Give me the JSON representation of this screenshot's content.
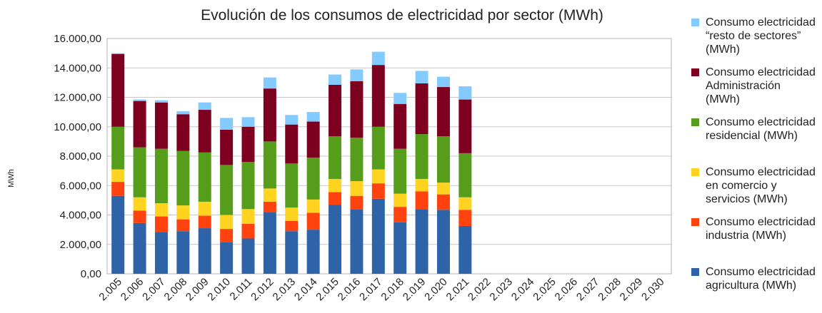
{
  "chart_data": {
    "type": "stacked_bar",
    "title": "Evolución de los consumos de electricidad por sector (MWh)",
    "y_label": "MWh",
    "categories": [
      "2.005",
      "2.006",
      "2.007",
      "2.008",
      "2.009",
      "2.010",
      "2.011",
      "2.012",
      "2.013",
      "2.014",
      "2.015",
      "2.016",
      "2.017",
      "2.018",
      "2.019",
      "2.020",
      "2.021",
      "2.022",
      "2.023",
      "2.024",
      "2.025",
      "2.026",
      "2.027",
      "2.028",
      "2.029",
      "2.030"
    ],
    "series": [
      {
        "name": "Consumo electricidad agricultura (MWh)",
        "color": "#2e63a8",
        "values": [
          5300,
          3450,
          2850,
          2900,
          3100,
          2150,
          2400,
          4200,
          2900,
          3000,
          4700,
          4400,
          5100,
          3500,
          4400,
          4350,
          3250,
          0,
          0,
          0,
          0,
          0,
          0,
          0,
          0,
          0
        ]
      },
      {
        "name": "Consumo electricidad industria (MWh)",
        "color": "#ff420e",
        "values": [
          950,
          850,
          1050,
          800,
          850,
          900,
          1000,
          700,
          700,
          1150,
          850,
          900,
          1050,
          1050,
          1200,
          1050,
          1100,
          0,
          0,
          0,
          0,
          0,
          0,
          0,
          0,
          0
        ]
      },
      {
        "name": "Consumo electricidad en comercio y servicios (MWh)",
        "color": "#ffd320",
        "values": [
          850,
          900,
          900,
          950,
          950,
          950,
          1000,
          900,
          900,
          900,
          900,
          1000,
          950,
          900,
          850,
          800,
          850,
          0,
          0,
          0,
          0,
          0,
          0,
          0,
          0,
          0
        ]
      },
      {
        "name": "Consumo electricidad residencial (MWh)",
        "color": "#579d1c",
        "values": [
          2900,
          3400,
          3700,
          3700,
          3350,
          3400,
          3200,
          3200,
          3000,
          2850,
          2900,
          2950,
          2900,
          3050,
          3050,
          3150,
          3000,
          0,
          0,
          0,
          0,
          0,
          0,
          0,
          0,
          0
        ]
      },
      {
        "name": "Consumo electricidad Administración (MWh)",
        "color": "#7e0021",
        "values": [
          4950,
          3150,
          3150,
          2500,
          2900,
          2400,
          2400,
          3600,
          2650,
          2450,
          3500,
          3850,
          4200,
          3050,
          3450,
          3350,
          3650,
          0,
          0,
          0,
          0,
          0,
          0,
          0,
          0,
          0
        ]
      },
      {
        "name": "Consumo electricidad “resto de sectores” (MWh)",
        "color": "#83caff",
        "values": [
          50,
          100,
          150,
          200,
          500,
          800,
          650,
          750,
          650,
          650,
          700,
          800,
          900,
          750,
          850,
          700,
          900,
          0,
          0,
          0,
          0,
          0,
          0,
          0,
          0,
          0
        ]
      }
    ],
    "ylim": [
      0,
      16000
    ],
    "yticks": [
      {
        "value": 0,
        "label": "0,00"
      },
      {
        "value": 2000,
        "label": "2.000,00"
      },
      {
        "value": 4000,
        "label": "4.000,00"
      },
      {
        "value": 6000,
        "label": "6.000,00"
      },
      {
        "value": 8000,
        "label": "8.000,00"
      },
      {
        "value": 10000,
        "label": "10.000,00"
      },
      {
        "value": 12000,
        "label": "12.000,00"
      },
      {
        "value": 14000,
        "label": "14.000,00"
      },
      {
        "value": 16000,
        "label": "16.000,00"
      }
    ],
    "grid": true,
    "legend": "right"
  }
}
